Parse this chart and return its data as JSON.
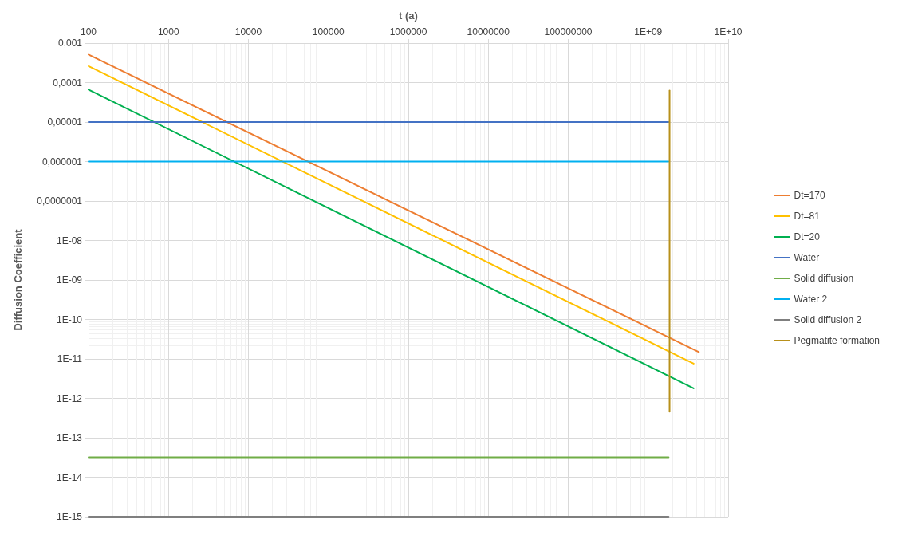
{
  "chart_data": {
    "type": "line",
    "xlabel": "t (a)",
    "ylabel": "Diffusion Coefficient",
    "log": "xy",
    "grid": true,
    "legend": "right",
    "marker": "none",
    "line_style": "solid",
    "xlim": [
      100,
      10000000000
    ],
    "ylim": [
      1e-15,
      0.001
    ],
    "xticks": [
      100,
      1000,
      10000,
      100000,
      1000000,
      10000000,
      100000000,
      {
        "value": 1000000000,
        "label": "1E+09"
      },
      {
        "value": 10000000000,
        "label": "1E+10"
      }
    ],
    "yticks": [
      {
        "value": 1e-15,
        "label": "1E-15"
      },
      {
        "value": 1e-14,
        "label": "1E-14"
      },
      {
        "value": 1e-13,
        "label": "1E-13"
      },
      {
        "value": 1e-12,
        "label": "1E-12"
      },
      {
        "value": 1e-11,
        "label": "1E-11"
      },
      {
        "value": 1e-10,
        "label": "1E-10"
      },
      {
        "value": 1e-09,
        "label": "1E-09"
      },
      {
        "value": 1e-08,
        "label": "1E-08"
      },
      {
        "value": 1e-07,
        "label": "0,0000001"
      },
      {
        "value": 1e-06,
        "label": "0,000001"
      },
      {
        "value": 1e-05,
        "label": "0,00001"
      },
      {
        "value": 0.0001,
        "label": "0,0001"
      },
      {
        "value": 0.001,
        "label": "0,001"
      }
    ],
    "series": [
      {
        "name": "Dt=170",
        "color": "#ed7d31",
        "x": [
          100,
          4300000000
        ],
        "values": [
          0.00051,
          1.5e-11
        ]
      },
      {
        "name": "Dt=81",
        "color": "#ffc000",
        "x": [
          100,
          3700000000
        ],
        "values": [
          0.00026,
          7.6e-12
        ]
      },
      {
        "name": "Dt=20",
        "color": "#00b050",
        "x": [
          100,
          3700000000
        ],
        "values": [
          6.6e-05,
          1.8e-12
        ]
      },
      {
        "name": "Water",
        "color": "#4472c4",
        "x": [
          100,
          1800000000
        ],
        "values": [
          1e-05,
          1e-05
        ]
      },
      {
        "name": "Solid diffusion",
        "color": "#70ad47",
        "x": [
          100,
          1800000000
        ],
        "values": [
          3.2e-14,
          3.2e-14
        ]
      },
      {
        "name": "Water 2",
        "color": "#00b0f0",
        "x": [
          100,
          1800000000
        ],
        "values": [
          1e-06,
          1e-06
        ]
      },
      {
        "name": "Solid diffusion 2",
        "color": "#7f7f7f",
        "x": [
          100,
          1800000000
        ],
        "values": [
          1e-15,
          1e-15
        ]
      },
      {
        "name": "Pegmatite formation",
        "color": "#b8901a",
        "x": [
          1850000000,
          1850000000
        ],
        "values": [
          6.3e-05,
          4.6e-13
        ]
      }
    ]
  }
}
